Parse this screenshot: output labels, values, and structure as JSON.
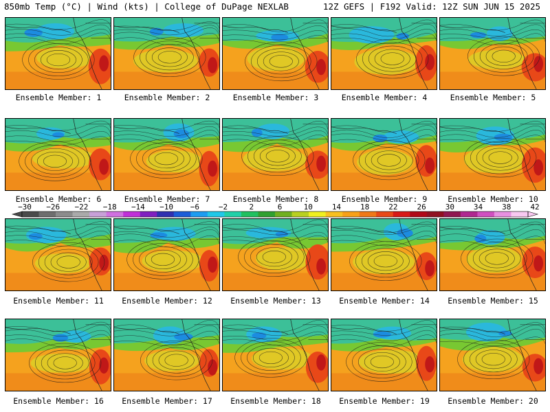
{
  "header": {
    "left": "850mb Temp (°C) | Wind (kts) | College of DuPage NEXLAB",
    "right": "12Z GEFS | F192 Valid: 12Z SUN JUN 15 2025"
  },
  "panels": [
    {
      "caption": "Ensemble Member: 1"
    },
    {
      "caption": "Ensemble Member: 2"
    },
    {
      "caption": "Ensemble Member: 3"
    },
    {
      "caption": "Ensemble Member: 4"
    },
    {
      "caption": "Ensemble Member: 5"
    },
    {
      "caption": "Ensemble Member: 6"
    },
    {
      "caption": "Ensemble Member: 7"
    },
    {
      "caption": "Ensemble Member: 8"
    },
    {
      "caption": "Ensemble Member: 9"
    },
    {
      "caption": "Ensemble Member: 10"
    },
    {
      "caption": "Ensemble Member: 11"
    },
    {
      "caption": "Ensemble Member: 12"
    },
    {
      "caption": "Ensemble Member: 13"
    },
    {
      "caption": "Ensemble Member: 14"
    },
    {
      "caption": "Ensemble Member: 15"
    },
    {
      "caption": "Ensemble Member: 16"
    },
    {
      "caption": "Ensemble Member: 17"
    },
    {
      "caption": "Ensemble Member: 18"
    },
    {
      "caption": "Ensemble Member: 19"
    },
    {
      "caption": "Ensemble Member: 20"
    }
  ],
  "colorbar": {
    "labels": [
      "-30",
      "-26",
      "-22",
      "-18",
      "-14",
      "-10",
      "-6",
      "-2",
      "2",
      "6",
      "10",
      "14",
      "18",
      "22",
      "26",
      "30",
      "34",
      "38",
      "42"
    ],
    "colors": [
      "#4a4a4a",
      "#6e6e6e",
      "#8c8c8c",
      "#aaaaaa",
      "#c8a0d8",
      "#d070e0",
      "#c030d8",
      "#8020c0",
      "#3030b0",
      "#1c5cd8",
      "#1c9cf0",
      "#20c8e8",
      "#20d0a8",
      "#20c060",
      "#30a030",
      "#70b020",
      "#b8d020",
      "#f0f020",
      "#f8c020",
      "#f8a018",
      "#f07818",
      "#e84818",
      "#d81818",
      "#b00818",
      "#901020",
      "#901850",
      "#b02890",
      "#d050c0",
      "#e890e0",
      "#f8c8f0"
    ]
  }
}
